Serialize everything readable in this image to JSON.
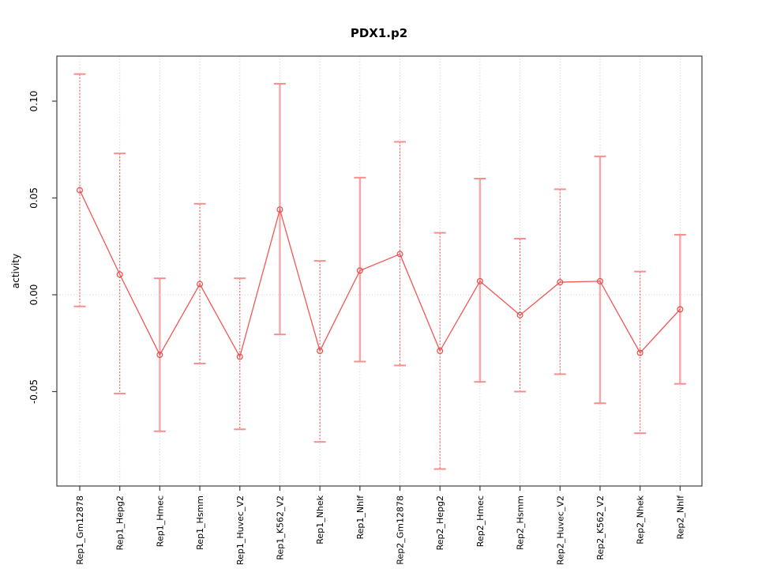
{
  "chart_data": {
    "type": "line",
    "title": "PDX1.p2",
    "xlabel": "",
    "ylabel": "activity",
    "ylim": [
      -0.099,
      0.123
    ],
    "grid": "dotted vertical gridline at every category; dotted horizontal gridline at y=0",
    "legend": "none",
    "categories": [
      "Rep1_Gm12878",
      "Rep1_Hepg2",
      "Rep1_Hmec",
      "Rep1_Hsmm",
      "Rep1_Huvec_V2",
      "Rep1_K562_V2",
      "Rep1_Nhek",
      "Rep1_Nhlf",
      "Rep2_Gm12878",
      "Rep2_Hepg2",
      "Rep2_Hmec",
      "Rep2_Hsmm",
      "Rep2_Huvec_V2",
      "Rep2_K562_V2",
      "Rep2_Nhek",
      "Rep2_Nhlf"
    ],
    "series": [
      {
        "name": "activity",
        "values": [
          0.054,
          0.0105,
          -0.031,
          0.0055,
          -0.032,
          0.044,
          -0.029,
          0.0125,
          0.021,
          -0.029,
          0.007,
          -0.0105,
          0.0065,
          0.007,
          -0.03,
          -0.0075
        ],
        "error_upper": [
          0.114,
          0.073,
          0.0085,
          0.047,
          0.0085,
          0.109,
          0.0175,
          0.0605,
          0.079,
          0.032,
          0.06,
          0.029,
          0.0545,
          0.0715,
          0.012,
          0.031
        ],
        "error_lower": [
          -0.006,
          -0.051,
          -0.0705,
          -0.0355,
          -0.0695,
          -0.0205,
          -0.076,
          -0.0345,
          -0.0365,
          -0.09,
          -0.045,
          -0.05,
          -0.041,
          -0.056,
          -0.0715,
          -0.046
        ],
        "bar_styles": [
          "dashed",
          "dashed",
          "solid",
          "dashed",
          "dashed",
          "solid",
          "dashed",
          "solid",
          "dashed",
          "dashed",
          "solid",
          "dashed",
          "dashed",
          "solid",
          "dashed",
          "solid"
        ]
      }
    ],
    "yticks": [
      {
        "v": 0.1,
        "label": "0.10"
      },
      {
        "v": 0.05,
        "label": "0.05"
      },
      {
        "v": 0.0,
        "label": "0.00"
      },
      {
        "v": -0.05,
        "label": "-0.05"
      }
    ],
    "colors": {
      "line": "#f15757",
      "point": "#e84b4b",
      "bar_dashed": "#ee5c5c",
      "bar_solid": "#f9a6a6",
      "cap": "#f58f8f",
      "grid": "#cfcfcf",
      "axis": "#3f3f3f",
      "text": "#000000"
    },
    "marker": "open-circle"
  }
}
